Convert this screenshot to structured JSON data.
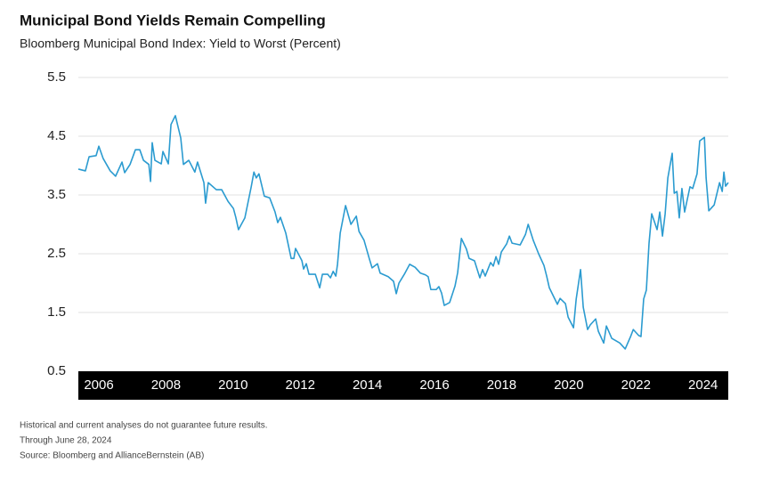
{
  "chart_data": {
    "type": "line",
    "title": "Municipal Bond Yields Remain Compelling",
    "subtitle": "Bloomberg Municipal Bond Index: Yield to Worst (Percent)",
    "footnotes": [
      "Historical and current analyses do not guarantee future results.",
      "Through June 28, 2024",
      "Source: Bloomberg and AllianceBernstein (AB)"
    ],
    "x": [
      2005.39,
      2005.6,
      2005.71,
      2005.92,
      2006.0,
      2006.13,
      2006.34,
      2006.5,
      2006.69,
      2006.77,
      2006.93,
      2007.09,
      2007.22,
      2007.33,
      2007.49,
      2007.54,
      2007.59,
      2007.67,
      2007.86,
      2007.91,
      2008.07,
      2008.15,
      2008.28,
      2008.44,
      2008.52,
      2008.68,
      2008.86,
      2008.94,
      2009.13,
      2009.18,
      2009.26,
      2009.5,
      2009.66,
      2009.85,
      2010.01,
      2010.08,
      2010.16,
      2010.35,
      2010.54,
      2010.62,
      2010.69,
      2010.77,
      2010.93,
      2011.09,
      2011.25,
      2011.33,
      2011.41,
      2011.57,
      2011.73,
      2011.81,
      2011.86,
      2012.05,
      2012.1,
      2012.18,
      2012.26,
      2012.45,
      2012.58,
      2012.66,
      2012.82,
      2012.9,
      2012.98,
      2013.06,
      2013.11,
      2013.19,
      2013.35,
      2013.51,
      2013.67,
      2013.75,
      2013.9,
      2014.06,
      2014.14,
      2014.3,
      2014.38,
      2014.62,
      2014.78,
      2014.86,
      2014.94,
      2015.1,
      2015.26,
      2015.42,
      2015.58,
      2015.73,
      2015.81,
      2015.89,
      2016.05,
      2016.13,
      2016.21,
      2016.29,
      2016.45,
      2016.61,
      2016.69,
      2016.8,
      2016.95,
      2017.03,
      2017.19,
      2017.35,
      2017.43,
      2017.51,
      2017.67,
      2017.75,
      2017.83,
      2017.91,
      2017.99,
      2018.15,
      2018.23,
      2018.31,
      2018.55,
      2018.71,
      2018.79,
      2018.94,
      2019.1,
      2019.26,
      2019.34,
      2019.42,
      2019.66,
      2019.74,
      2019.9,
      2019.98,
      2020.14,
      2020.22,
      2020.35,
      2020.43,
      2020.56,
      2020.64,
      2020.8,
      2020.88,
      2021.04,
      2021.12,
      2021.28,
      2021.52,
      2021.68,
      2021.84,
      2021.92,
      2022.08,
      2022.15,
      2022.23,
      2022.31,
      2022.39,
      2022.47,
      2022.63,
      2022.71,
      2022.79,
      2022.87,
      2022.95,
      2023.08,
      2023.14,
      2023.22,
      2023.29,
      2023.37,
      2023.45,
      2023.61,
      2023.69,
      2023.82,
      2023.9,
      2024.04,
      2024.09,
      2024.17,
      2024.33,
      2024.49,
      2024.57,
      2024.62,
      2024.67,
      2024.75
    ],
    "series": [
      {
        "color": "#2b9bd0",
        "values": [
          3.94,
          3.91,
          4.15,
          4.17,
          4.33,
          4.12,
          3.91,
          3.82,
          4.06,
          3.88,
          4.02,
          4.27,
          4.27,
          4.09,
          4.02,
          3.73,
          4.39,
          4.09,
          4.03,
          4.24,
          4.03,
          4.7,
          4.85,
          4.47,
          4.02,
          4.09,
          3.89,
          4.06,
          3.71,
          3.36,
          3.71,
          3.59,
          3.59,
          3.39,
          3.27,
          3.12,
          2.91,
          3.11,
          3.64,
          3.89,
          3.79,
          3.86,
          3.48,
          3.45,
          3.21,
          3.03,
          3.12,
          2.85,
          2.42,
          2.42,
          2.59,
          2.38,
          2.24,
          2.33,
          2.15,
          2.15,
          1.92,
          2.15,
          2.15,
          2.09,
          2.2,
          2.12,
          2.32,
          2.85,
          3.32,
          3.0,
          3.14,
          2.88,
          2.73,
          2.41,
          2.26,
          2.33,
          2.17,
          2.11,
          2.03,
          1.82,
          2.0,
          2.15,
          2.32,
          2.27,
          2.17,
          2.14,
          2.11,
          1.89,
          1.89,
          1.94,
          1.83,
          1.62,
          1.67,
          1.95,
          2.18,
          2.76,
          2.58,
          2.42,
          2.38,
          2.09,
          2.23,
          2.12,
          2.35,
          2.29,
          2.45,
          2.32,
          2.53,
          2.67,
          2.8,
          2.68,
          2.65,
          2.83,
          3.0,
          2.73,
          2.5,
          2.3,
          2.12,
          1.92,
          1.64,
          1.74,
          1.65,
          1.42,
          1.24,
          1.73,
          2.23,
          1.59,
          1.21,
          1.29,
          1.39,
          1.18,
          0.98,
          1.27,
          1.06,
          0.98,
          0.88,
          1.09,
          1.21,
          1.11,
          1.09,
          1.73,
          1.88,
          2.68,
          3.18,
          2.91,
          3.21,
          2.8,
          3.18,
          3.79,
          4.21,
          3.53,
          3.56,
          3.11,
          3.61,
          3.21,
          3.64,
          3.61,
          3.86,
          4.42,
          4.48,
          3.79,
          3.23,
          3.33,
          3.71,
          3.56,
          3.89,
          3.65,
          3.71
        ]
      }
    ],
    "xlim": [
      2005.39,
      2024.75
    ],
    "xticks": [
      2006,
      2008,
      2010,
      2012,
      2014,
      2016,
      2018,
      2020,
      2022,
      2024
    ],
    "ylim": [
      0.5,
      5.5
    ],
    "yticks": [
      0.5,
      1.5,
      2.5,
      3.5,
      4.5,
      5.5
    ],
    "grid": true
  }
}
